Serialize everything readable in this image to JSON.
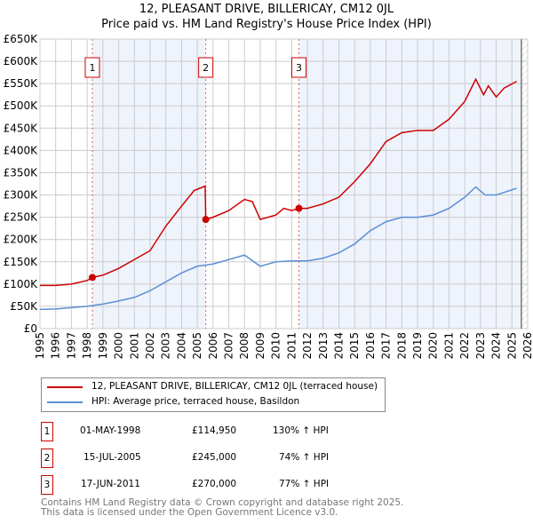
{
  "chart_data": {
    "type": "line",
    "title": "12, PLEASANT DRIVE, BILLERICAY, CM12 0JL",
    "subtitle": "Price paid vs. HM Land Registry's House Price Index (HPI)",
    "xlim": [
      1995,
      2026
    ],
    "ylim": [
      0,
      650000
    ],
    "yticks": [
      0,
      50000,
      100000,
      150000,
      200000,
      250000,
      300000,
      350000,
      400000,
      450000,
      500000,
      550000,
      600000,
      650000
    ],
    "ytick_labels": [
      "£0",
      "£50K",
      "£100K",
      "£150K",
      "£200K",
      "£250K",
      "£300K",
      "£350K",
      "£400K",
      "£450K",
      "£500K",
      "£550K",
      "£600K",
      "£650K"
    ],
    "xticks": [
      1995,
      1996,
      1997,
      1998,
      1999,
      2000,
      2001,
      2002,
      2003,
      2004,
      2005,
      2006,
      2007,
      2008,
      2009,
      2010,
      2011,
      2012,
      2013,
      2014,
      2015,
      2016,
      2017,
      2018,
      2019,
      2020,
      2021,
      2022,
      2023,
      2024,
      2025,
      2026
    ],
    "grid": true,
    "series": [
      {
        "name": "12, PLEASANT DRIVE, BILLERICAY, CM12 0JL (terraced house)",
        "color": "#cc0000",
        "x": [
          1995,
          1996,
          1997,
          1998,
          1998.33,
          1999,
          2000,
          2001,
          2002,
          2003,
          2004,
          2004.8,
          2005.5,
          2005.54,
          2006,
          2007,
          2008,
          2008.5,
          2009,
          2010,
          2010.5,
          2011,
          2011.46,
          2012,
          2013,
          2014,
          2015,
          2016,
          2017,
          2018,
          2019,
          2020,
          2021,
          2022,
          2022.7,
          2023.2,
          2023.5,
          2024,
          2024.5,
          2025.3
        ],
        "y": [
          97000,
          97000,
          100000,
          108000,
          114950,
          120000,
          135000,
          155000,
          175000,
          230000,
          275000,
          310000,
          320000,
          245000,
          250000,
          265000,
          290000,
          285000,
          245000,
          255000,
          270000,
          265000,
          270000,
          270000,
          280000,
          295000,
          330000,
          370000,
          420000,
          440000,
          445000,
          445000,
          470000,
          510000,
          560000,
          525000,
          545000,
          520000,
          540000,
          555000
        ]
      },
      {
        "name": "HPI: Average price, terraced house, Basildon",
        "color": "#5b8fd6",
        "x": [
          1995,
          1996,
          1997,
          1998,
          1999,
          2000,
          2001,
          2002,
          2003,
          2004,
          2005,
          2006,
          2007,
          2008,
          2009,
          2010,
          2011,
          2012,
          2013,
          2014,
          2015,
          2016,
          2017,
          2018,
          2019,
          2020,
          2021,
          2022,
          2022.7,
          2023.3,
          2024,
          2025.3
        ],
        "y": [
          43000,
          44000,
          47000,
          50000,
          55000,
          62000,
          70000,
          85000,
          105000,
          125000,
          140000,
          145000,
          155000,
          165000,
          140000,
          150000,
          152000,
          152000,
          158000,
          170000,
          190000,
          220000,
          240000,
          250000,
          250000,
          255000,
          270000,
          295000,
          318000,
          300000,
          300000,
          315000
        ]
      }
    ],
    "sales": [
      {
        "label": "1",
        "x": 1998.33,
        "y": 114950,
        "date": "01-MAY-1998",
        "price": "£114,950",
        "hpi": "130% ↑ HPI"
      },
      {
        "label": "2",
        "x": 2005.54,
        "y": 245000,
        "date": "15-JUL-2005",
        "price": "£245,000",
        "hpi": "74% ↑ HPI"
      },
      {
        "label": "3",
        "x": 2011.46,
        "y": 270000,
        "date": "17-JUN-2011",
        "price": "£270,000",
        "hpi": "77% ↑ HPI"
      }
    ],
    "data_end": 2025.6
  },
  "footer": {
    "line1": "Contains HM Land Registry data © Crown copyright and database right 2025.",
    "line2": "This data is licensed under the Open Government Licence v3.0."
  }
}
